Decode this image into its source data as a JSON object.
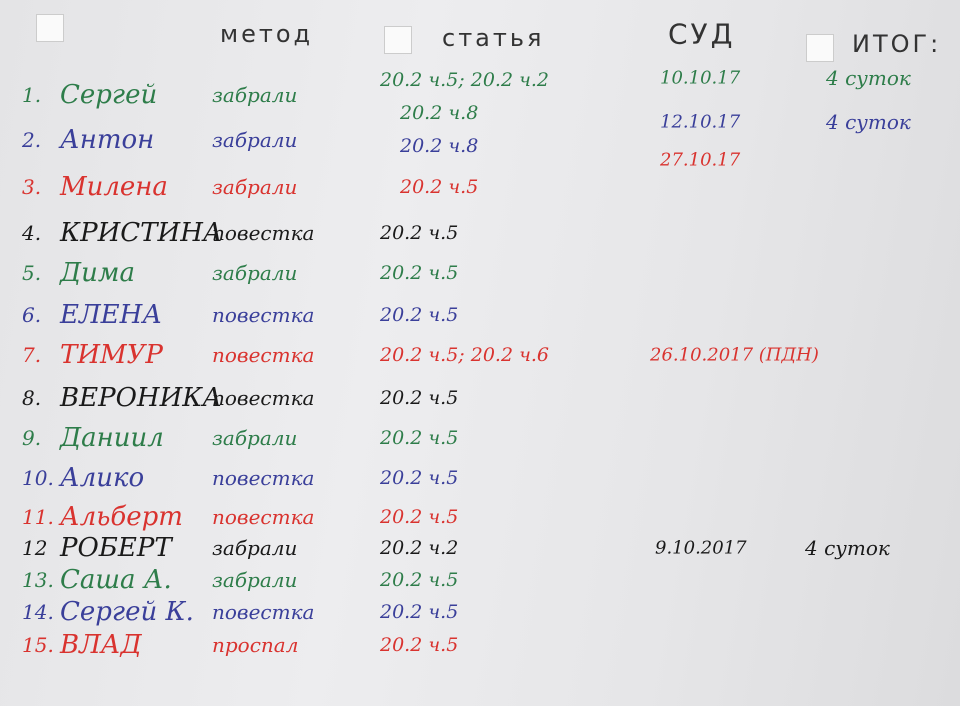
{
  "header": {
    "method": "метод",
    "article": "статья",
    "court": "СУД",
    "result": "ИТОГ:"
  },
  "rows": [
    {
      "num": "1.",
      "name": "Сергей",
      "method": "забрали",
      "article": [
        "20.2 ч.5; 20.2 ч.2",
        "20.2 ч.8"
      ],
      "court": "10.10.17",
      "result": "4 суток"
    },
    {
      "num": "2.",
      "name": "Антон",
      "method": "забрали",
      "article": [
        "20.2 ч.8"
      ],
      "court": "12.10.17",
      "result": "4 суток"
    },
    {
      "num": "3.",
      "name": "Милена",
      "method": "забрали",
      "article": [
        "20.2 ч.5"
      ],
      "court": "27.10.17"
    },
    {
      "num": "4.",
      "name": "КРИСТИНА",
      "method": "повестка",
      "article": [
        "20.2 ч.5"
      ]
    },
    {
      "num": "5.",
      "name": "Дима",
      "method": "забрали",
      "article": [
        "20.2 ч.5"
      ]
    },
    {
      "num": "6.",
      "name": "ЕЛЕНА",
      "method": "повестка",
      "article": [
        "20.2 ч.5"
      ]
    },
    {
      "num": "7.",
      "name": "ТИМУР",
      "method": "повестка",
      "article": [
        "20.2 ч.5; 20.2 ч.6"
      ],
      "court": "26.10.2017 (ПДН)"
    },
    {
      "num": "8.",
      "name": "ВЕРОНИКА",
      "method": "повестка",
      "article": [
        "20.2 ч.5"
      ]
    },
    {
      "num": "9.",
      "name": "Даниил",
      "method": "забрали",
      "article": [
        "20.2 ч.5"
      ]
    },
    {
      "num": "10.",
      "name": "Алико",
      "method": "повестка",
      "article": [
        "20.2 ч.5"
      ]
    },
    {
      "num": "11.",
      "name": "Альберт",
      "method": "повестка",
      "article": [
        "20.2 ч.5"
      ]
    },
    {
      "num": "12",
      "name": "РОБЕРТ",
      "method": "забрали",
      "article": [
        "20.2 ч.2"
      ],
      "court": "9.10.2017",
      "result": "4 суток"
    },
    {
      "num": "13.",
      "name": "Саша А.",
      "method": "забрали",
      "article": [
        "20.2 ч.5"
      ]
    },
    {
      "num": "14.",
      "name": "Сергей К.",
      "method": "повестка",
      "article": [
        "20.2 ч.5"
      ]
    },
    {
      "num": "15.",
      "name": "ВЛАД",
      "method": "проспал",
      "article": [
        "20.2 ч.5"
      ]
    }
  ]
}
